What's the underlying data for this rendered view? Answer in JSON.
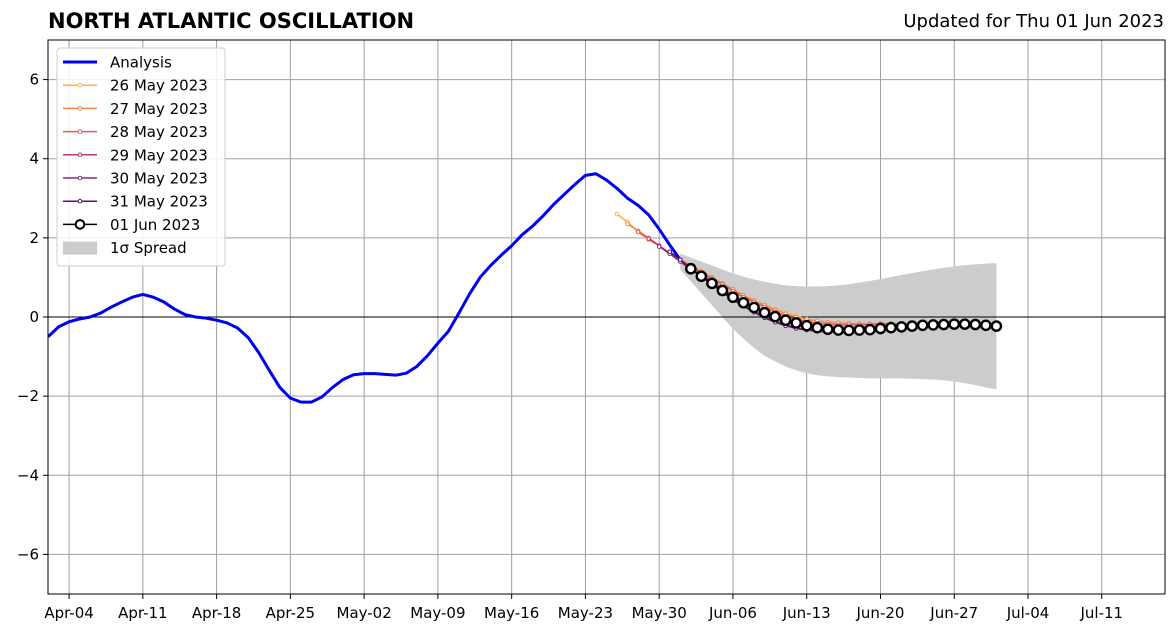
{
  "header": {
    "title": "NORTH ATLANTIC OSCILLATION",
    "updated": "Updated for Thu 01 Jun 2023"
  },
  "chart_data": {
    "type": "line",
    "title": "NORTH ATLANTIC OSCILLATION",
    "xlabel": "",
    "ylabel": "",
    "xlim": [
      "2023-04-02",
      "2023-07-17"
    ],
    "ylim": [
      -7,
      7
    ],
    "grid": true,
    "legend_position": "top-left",
    "x_tick_labels": [
      "Apr-04",
      "Apr-11",
      "Apr-18",
      "Apr-25",
      "May-02",
      "May-09",
      "May-16",
      "May-23",
      "May-30",
      "Jun-06",
      "Jun-13",
      "Jun-20",
      "Jun-27",
      "Jul-04",
      "Jul-11"
    ],
    "y_tick_labels": [
      "6",
      "4",
      "2",
      "0",
      "−2",
      "−4",
      "−6"
    ],
    "analysis": {
      "name": "Analysis",
      "color": "#0000ee",
      "x": [
        "2023-04-02",
        "2023-04-03",
        "2023-04-04",
        "2023-04-05",
        "2023-04-06",
        "2023-04-07",
        "2023-04-08",
        "2023-04-09",
        "2023-04-10",
        "2023-04-11",
        "2023-04-12",
        "2023-04-13",
        "2023-04-14",
        "2023-04-15",
        "2023-04-16",
        "2023-04-17",
        "2023-04-18",
        "2023-04-19",
        "2023-04-20",
        "2023-04-21",
        "2023-04-22",
        "2023-04-23",
        "2023-04-24",
        "2023-04-25",
        "2023-04-26",
        "2023-04-27",
        "2023-04-28",
        "2023-04-29",
        "2023-04-30",
        "2023-05-01",
        "2023-05-02",
        "2023-05-03",
        "2023-05-04",
        "2023-05-05",
        "2023-05-06",
        "2023-05-07",
        "2023-05-08",
        "2023-05-09",
        "2023-05-10",
        "2023-05-11",
        "2023-05-12",
        "2023-05-13",
        "2023-05-14",
        "2023-05-15",
        "2023-05-16",
        "2023-05-17",
        "2023-05-18",
        "2023-05-19",
        "2023-05-20",
        "2023-05-21",
        "2023-05-22",
        "2023-05-23",
        "2023-05-24",
        "2023-05-25",
        "2023-05-26",
        "2023-05-27",
        "2023-05-28",
        "2023-05-29",
        "2023-05-30",
        "2023-05-31",
        "2023-06-01"
      ],
      "y": [
        -0.5,
        -0.25,
        -0.12,
        -0.05,
        0.0,
        0.1,
        0.25,
        0.38,
        0.5,
        0.57,
        0.5,
        0.38,
        0.2,
        0.06,
        0.0,
        -0.03,
        -0.08,
        -0.15,
        -0.28,
        -0.52,
        -0.9,
        -1.35,
        -1.78,
        -2.05,
        -2.15,
        -2.15,
        -2.02,
        -1.78,
        -1.58,
        -1.46,
        -1.43,
        -1.43,
        -1.45,
        -1.47,
        -1.42,
        -1.25,
        -0.98,
        -0.66,
        -0.36,
        0.1,
        0.58,
        1.0,
        1.3,
        1.56,
        1.8,
        2.08,
        2.3,
        2.56,
        2.85,
        3.1,
        3.35,
        3.58,
        3.62,
        3.46,
        3.25,
        3.0,
        2.82,
        2.58,
        2.22,
        1.82,
        1.45
      ]
    },
    "series": [
      {
        "name": "26 May 2023",
        "color": "#f8b33f",
        "x": [
          "2023-05-26",
          "2023-05-27",
          "2023-05-28",
          "2023-05-29",
          "2023-05-30",
          "2023-05-31",
          "2023-06-01",
          "2023-06-02",
          "2023-06-03",
          "2023-06-04",
          "2023-06-05",
          "2023-06-06",
          "2023-06-07",
          "2023-06-08",
          "2023-06-09",
          "2023-06-10",
          "2023-06-11",
          "2023-06-12",
          "2023-06-13",
          "2023-06-14",
          "2023-06-15",
          "2023-06-16",
          "2023-06-17",
          "2023-06-18",
          "2023-06-19",
          "2023-06-20",
          "2023-06-21",
          "2023-06-22",
          "2023-06-23",
          "2023-06-24",
          "2023-06-25"
        ],
        "y": [
          2.6,
          2.4,
          2.15,
          1.95,
          1.8,
          1.6,
          1.45,
          1.3,
          1.15,
          1.0,
          0.85,
          0.7,
          0.55,
          0.42,
          0.3,
          0.2,
          0.1,
          0.02,
          -0.05,
          -0.1,
          -0.13,
          -0.15,
          -0.17,
          -0.18,
          -0.2,
          -0.2,
          -0.2,
          -0.21,
          -0.22,
          -0.25,
          -0.28
        ]
      },
      {
        "name": "27 May 2023",
        "color": "#ee8a45",
        "x": [
          "2023-05-27",
          "2023-05-28",
          "2023-05-29",
          "2023-05-30",
          "2023-05-31",
          "2023-06-01",
          "2023-06-02",
          "2023-06-03",
          "2023-06-04",
          "2023-06-05",
          "2023-06-06",
          "2023-06-07",
          "2023-06-08",
          "2023-06-09",
          "2023-06-10",
          "2023-06-11",
          "2023-06-12",
          "2023-06-13",
          "2023-06-14",
          "2023-06-15",
          "2023-06-16",
          "2023-06-17",
          "2023-06-18",
          "2023-06-19",
          "2023-06-20",
          "2023-06-21",
          "2023-06-22",
          "2023-06-23",
          "2023-06-24",
          "2023-06-25",
          "2023-06-26"
        ],
        "y": [
          2.35,
          2.18,
          2.0,
          1.8,
          1.62,
          1.45,
          1.3,
          1.15,
          1.0,
          0.85,
          0.7,
          0.55,
          0.42,
          0.3,
          0.18,
          0.08,
          0.0,
          -0.06,
          -0.1,
          -0.13,
          -0.15,
          -0.16,
          -0.17,
          -0.17,
          -0.16,
          -0.16,
          -0.17,
          -0.18,
          -0.2,
          -0.22,
          -0.23
        ]
      },
      {
        "name": "28 May 2023",
        "color": "#dd5e66",
        "x": [
          "2023-05-28",
          "2023-05-29",
          "2023-05-30",
          "2023-05-31",
          "2023-06-01",
          "2023-06-02",
          "2023-06-03",
          "2023-06-04",
          "2023-06-05",
          "2023-06-06",
          "2023-06-07",
          "2023-06-08",
          "2023-06-09",
          "2023-06-10",
          "2023-06-11",
          "2023-06-12",
          "2023-06-13",
          "2023-06-14",
          "2023-06-15",
          "2023-06-16",
          "2023-06-17",
          "2023-06-18",
          "2023-06-19",
          "2023-06-20",
          "2023-06-21",
          "2023-06-22",
          "2023-06-23",
          "2023-06-24",
          "2023-06-25",
          "2023-06-26",
          "2023-06-27"
        ],
        "y": [
          2.15,
          1.98,
          1.8,
          1.62,
          1.45,
          1.28,
          1.12,
          0.97,
          0.82,
          0.66,
          0.5,
          0.38,
          0.25,
          0.13,
          0.02,
          -0.06,
          -0.12,
          -0.16,
          -0.18,
          -0.2,
          -0.2,
          -0.2,
          -0.19,
          -0.18,
          -0.18,
          -0.18,
          -0.19,
          -0.2,
          -0.2,
          -0.2,
          -0.2
        ]
      },
      {
        "name": "29 May 2023",
        "color": "#b73779",
        "x": [
          "2023-05-29",
          "2023-05-30",
          "2023-05-31",
          "2023-06-01",
          "2023-06-02",
          "2023-06-03",
          "2023-06-04",
          "2023-06-05",
          "2023-06-06",
          "2023-06-07",
          "2023-06-08",
          "2023-06-09",
          "2023-06-10",
          "2023-06-11",
          "2023-06-12",
          "2023-06-13",
          "2023-06-14",
          "2023-06-15",
          "2023-06-16",
          "2023-06-17",
          "2023-06-18",
          "2023-06-19",
          "2023-06-20",
          "2023-06-21",
          "2023-06-22",
          "2023-06-23",
          "2023-06-24",
          "2023-06-25",
          "2023-06-26",
          "2023-06-27",
          "2023-06-28"
        ],
        "y": [
          1.98,
          1.8,
          1.6,
          1.42,
          1.25,
          1.08,
          0.9,
          0.72,
          0.55,
          0.4,
          0.26,
          0.14,
          0.03,
          -0.06,
          -0.14,
          -0.2,
          -0.24,
          -0.26,
          -0.27,
          -0.27,
          -0.26,
          -0.25,
          -0.24,
          -0.23,
          -0.22,
          -0.21,
          -0.2,
          -0.19,
          -0.19,
          -0.19,
          -0.2
        ]
      },
      {
        "name": "30 May 2023",
        "color": "#8c2981",
        "x": [
          "2023-05-30",
          "2023-05-31",
          "2023-06-01",
          "2023-06-02",
          "2023-06-03",
          "2023-06-04",
          "2023-06-05",
          "2023-06-06",
          "2023-06-07",
          "2023-06-08",
          "2023-06-09",
          "2023-06-10",
          "2023-06-11",
          "2023-06-12",
          "2023-06-13",
          "2023-06-14",
          "2023-06-15",
          "2023-06-16",
          "2023-06-17",
          "2023-06-18",
          "2023-06-19",
          "2023-06-20",
          "2023-06-21",
          "2023-06-22",
          "2023-06-23",
          "2023-06-24",
          "2023-06-25",
          "2023-06-26",
          "2023-06-27",
          "2023-06-28",
          "2023-06-29"
        ],
        "y": [
          1.78,
          1.6,
          1.4,
          1.2,
          1.02,
          0.84,
          0.65,
          0.47,
          0.3,
          0.15,
          0.02,
          -0.1,
          -0.2,
          -0.27,
          -0.32,
          -0.35,
          -0.36,
          -0.36,
          -0.35,
          -0.33,
          -0.31,
          -0.29,
          -0.27,
          -0.25,
          -0.23,
          -0.22,
          -0.21,
          -0.2,
          -0.2,
          -0.21,
          -0.22
        ]
      },
      {
        "name": "31 May 2023",
        "color": "#51127c",
        "x": [
          "2023-05-31",
          "2023-06-01",
          "2023-06-02",
          "2023-06-03",
          "2023-06-04",
          "2023-06-05",
          "2023-06-06",
          "2023-06-07",
          "2023-06-08",
          "2023-06-09",
          "2023-06-10",
          "2023-06-11",
          "2023-06-12",
          "2023-06-13",
          "2023-06-14",
          "2023-06-15",
          "2023-06-16",
          "2023-06-17",
          "2023-06-18",
          "2023-06-19",
          "2023-06-20",
          "2023-06-21",
          "2023-06-22",
          "2023-06-23",
          "2023-06-24",
          "2023-06-25",
          "2023-06-26",
          "2023-06-27",
          "2023-06-28",
          "2023-06-29",
          "2023-06-30"
        ],
        "y": [
          1.65,
          1.45,
          1.22,
          1.02,
          0.82,
          0.62,
          0.44,
          0.27,
          0.12,
          -0.02,
          -0.13,
          -0.22,
          -0.29,
          -0.33,
          -0.36,
          -0.38,
          -0.37,
          -0.35,
          -0.33,
          -0.3,
          -0.28,
          -0.26,
          -0.24,
          -0.22,
          -0.21,
          -0.2,
          -0.2,
          -0.2,
          -0.21,
          -0.22,
          -0.23
        ]
      },
      {
        "name": "01 Jun 2023",
        "color": "#000000",
        "x": [
          "2023-06-02",
          "2023-06-03",
          "2023-06-04",
          "2023-06-05",
          "2023-06-06",
          "2023-06-07",
          "2023-06-08",
          "2023-06-09",
          "2023-06-10",
          "2023-06-11",
          "2023-06-12",
          "2023-06-13",
          "2023-06-14",
          "2023-06-15",
          "2023-06-16",
          "2023-06-17",
          "2023-06-18",
          "2023-06-19",
          "2023-06-20",
          "2023-06-21",
          "2023-06-22",
          "2023-06-23",
          "2023-06-24",
          "2023-06-25",
          "2023-06-26",
          "2023-06-27",
          "2023-06-28",
          "2023-06-29",
          "2023-06-30",
          "2023-07-01"
        ],
        "y": [
          1.22,
          1.03,
          0.85,
          0.67,
          0.5,
          0.36,
          0.24,
          0.11,
          0.01,
          -0.08,
          -0.15,
          -0.22,
          -0.27,
          -0.31,
          -0.33,
          -0.34,
          -0.33,
          -0.32,
          -0.29,
          -0.27,
          -0.25,
          -0.23,
          -0.21,
          -0.2,
          -0.19,
          -0.18,
          -0.18,
          -0.19,
          -0.21,
          -0.23
        ]
      }
    ],
    "spread": {
      "name": "1σ Spread",
      "color": "#cccccc",
      "x": [
        "2023-06-01",
        "2023-06-02",
        "2023-06-03",
        "2023-06-04",
        "2023-06-05",
        "2023-06-06",
        "2023-06-07",
        "2023-06-08",
        "2023-06-09",
        "2023-06-10",
        "2023-06-11",
        "2023-06-12",
        "2023-06-13",
        "2023-06-14",
        "2023-06-15",
        "2023-06-16",
        "2023-06-17",
        "2023-06-18",
        "2023-06-19",
        "2023-06-20",
        "2023-06-21",
        "2023-06-22",
        "2023-06-23",
        "2023-06-24",
        "2023-06-25",
        "2023-06-26",
        "2023-06-27",
        "2023-06-28",
        "2023-06-29",
        "2023-06-30",
        "2023-07-01"
      ],
      "upper": [
        1.6,
        1.5,
        1.4,
        1.3,
        1.2,
        1.1,
        1.02,
        0.95,
        0.89,
        0.84,
        0.8,
        0.78,
        0.77,
        0.77,
        0.78,
        0.8,
        0.83,
        0.87,
        0.91,
        0.96,
        1.01,
        1.06,
        1.11,
        1.16,
        1.2,
        1.24,
        1.28,
        1.31,
        1.33,
        1.35,
        1.36
      ],
      "lower": [
        1.2,
        0.9,
        0.6,
        0.3,
        0.0,
        -0.3,
        -0.55,
        -0.78,
        -0.98,
        -1.12,
        -1.25,
        -1.35,
        -1.42,
        -1.47,
        -1.5,
        -1.52,
        -1.53,
        -1.54,
        -1.55,
        -1.55,
        -1.55,
        -1.55,
        -1.56,
        -1.57,
        -1.58,
        -1.6,
        -1.63,
        -1.67,
        -1.72,
        -1.78,
        -1.83
      ]
    }
  }
}
